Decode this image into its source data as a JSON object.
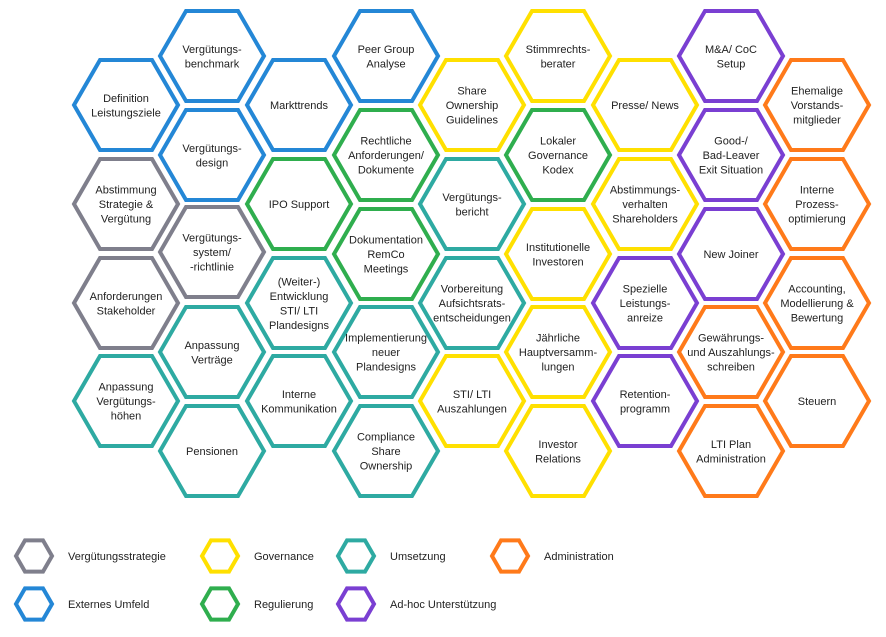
{
  "categories": [
    {
      "key": "strategie",
      "label": "Vergütungsstrategie",
      "color": "#7f7f8c"
    },
    {
      "key": "governance",
      "label": "Governance",
      "color": "#ffe000"
    },
    {
      "key": "umsetzung",
      "label": "Umsetzung",
      "color": "#2eaaa2"
    },
    {
      "key": "administration",
      "label": "Administration",
      "color": "#ff7a1a"
    },
    {
      "key": "extern",
      "label": "Externes Umfeld",
      "color": "#2487d6"
    },
    {
      "key": "regulierung",
      "label": "Regulierung",
      "color": "#2fae4e"
    },
    {
      "key": "adhoc",
      "label": "Ad-hoc Unterstützung",
      "color": "#7a3fd2"
    }
  ],
  "hexagons": [
    {
      "lines": [
        "Vergütungs-",
        "benchmark"
      ],
      "category": "extern"
    },
    {
      "lines": [
        "Definition",
        "Leistungsziele"
      ],
      "category": "extern"
    },
    {
      "lines": [
        "Markttrends"
      ],
      "category": "extern"
    },
    {
      "lines": [
        "Vergütungs-",
        "design"
      ],
      "category": "extern"
    },
    {
      "lines": [
        "Abstimmung",
        "Strategie &",
        "Vergütung"
      ],
      "category": "strategie"
    },
    {
      "lines": [
        "Vergütungs-",
        "system/",
        "-richtlinie"
      ],
      "category": "strategie"
    },
    {
      "lines": [
        "Anforderungen",
        "Stakeholder"
      ],
      "category": "strategie"
    },
    {
      "lines": [
        "Anpassung",
        "Verträge"
      ],
      "category": "umsetzung"
    },
    {
      "lines": [
        "Anpassung",
        "Vergütungs-",
        "höhen"
      ],
      "category": "umsetzung"
    },
    {
      "lines": [
        "Pensionen"
      ],
      "category": "umsetzung"
    },
    {
      "lines": [
        "Peer Group",
        "Analyse"
      ],
      "category": "extern"
    },
    {
      "lines": [
        "Rechtliche",
        "Anforderungen/",
        "Dokumente"
      ],
      "category": "regulierung"
    },
    {
      "lines": [
        "IPO Support"
      ],
      "category": "regulierung"
    },
    {
      "lines": [
        "Dokumentation",
        "RemCo",
        "Meetings"
      ],
      "category": "regulierung"
    },
    {
      "lines": [
        "(Weiter-)",
        "Entwicklung",
        "STI/ LTI",
        "Plandesigns"
      ],
      "category": "umsetzung"
    },
    {
      "lines": [
        "Implementierung",
        "neuer",
        "Plandesigns"
      ],
      "category": "umsetzung"
    },
    {
      "lines": [
        "Interne",
        "Kommunikation"
      ],
      "category": "umsetzung"
    },
    {
      "lines": [
        "Compliance",
        "Share",
        "Ownership"
      ],
      "category": "umsetzung"
    },
    {
      "lines": [
        "Share",
        "Ownership",
        "Guidelines"
      ],
      "category": "governance"
    },
    {
      "lines": [
        "Vergütungs-",
        "bericht"
      ],
      "category": "umsetzung"
    },
    {
      "lines": [
        "Vorbereitung",
        "Aufsichtsrats-",
        "entscheidungen"
      ],
      "category": "umsetzung"
    },
    {
      "lines": [
        "STI/ LTI",
        "Auszahlungen"
      ],
      "category": "governance"
    },
    {
      "lines": [
        "Stimmrechts-",
        "berater"
      ],
      "category": "governance"
    },
    {
      "lines": [
        "Lokaler",
        "Governance",
        "Kodex"
      ],
      "category": "regulierung"
    },
    {
      "lines": [
        "Institutionelle",
        "Investoren"
      ],
      "category": "governance"
    },
    {
      "lines": [
        "Jährliche",
        "Hauptversamm-",
        "lungen"
      ],
      "category": "governance"
    },
    {
      "lines": [
        "Investor",
        "Relations"
      ],
      "category": "governance"
    },
    {
      "lines": [
        "Presse/ News"
      ],
      "category": "governance"
    },
    {
      "lines": [
        "Abstimmungs-",
        "verhalten",
        "Shareholders"
      ],
      "category": "governance"
    },
    {
      "lines": [
        "Spezielle",
        "Leistungs-",
        "anreize"
      ],
      "category": "adhoc"
    },
    {
      "lines": [
        "Retention-",
        "programm"
      ],
      "category": "adhoc"
    },
    {
      "lines": [
        "M&A/ CoC",
        "Setup"
      ],
      "category": "adhoc"
    },
    {
      "lines": [
        "Good-/",
        "Bad-Leaver",
        "Exit Situation"
      ],
      "category": "adhoc"
    },
    {
      "lines": [
        "New Joiner"
      ],
      "category": "adhoc"
    },
    {
      "lines": [
        "Gewährungs-",
        "und Auszahlungs-",
        "schreiben"
      ],
      "category": "administration"
    },
    {
      "lines": [
        "LTI Plan",
        "Administration"
      ],
      "category": "administration"
    },
    {
      "lines": [
        "Ehemalige",
        "Vorstands-",
        "mitglieder"
      ],
      "category": "administration"
    },
    {
      "lines": [
        "Interne",
        "Prozess-",
        "optimierung"
      ],
      "category": "administration"
    },
    {
      "lines": [
        "Accounting,",
        "Modellierung &",
        "Bewertung"
      ],
      "category": "administration"
    },
    {
      "lines": [
        "Steuern"
      ],
      "category": "administration"
    }
  ]
}
